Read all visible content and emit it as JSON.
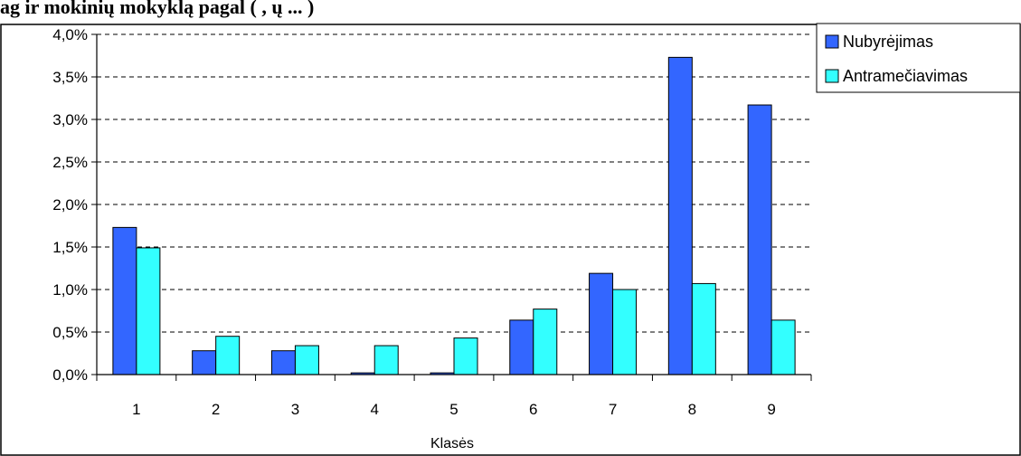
{
  "title_fragment": "ag         ir           mokinių       mokyklą     pagal           (    ,       ų ...        )",
  "chart_data": {
    "type": "bar",
    "categories": [
      "1",
      "2",
      "3",
      "4",
      "5",
      "6",
      "7",
      "8",
      "9"
    ],
    "xlabel": "Klasės",
    "ylabel": "",
    "ylim": [
      0,
      4.0
    ],
    "yticks": [
      "0,0%",
      "0,5%",
      "1,0%",
      "1,5%",
      "2,0%",
      "2,5%",
      "3,0%",
      "3,5%",
      "4,0%"
    ],
    "grid": true,
    "legend_position": "right",
    "series": [
      {
        "name": "Nubyrėjimas",
        "color": "#3366ff",
        "values": [
          1.73,
          0.28,
          0.28,
          0.02,
          0.02,
          0.64,
          1.19,
          3.73,
          3.17
        ]
      },
      {
        "name": "Antramečiavimas",
        "color": "#33ffff",
        "values": [
          1.49,
          0.45,
          0.34,
          0.34,
          0.43,
          0.77,
          1.0,
          1.07,
          0.64
        ]
      }
    ]
  }
}
